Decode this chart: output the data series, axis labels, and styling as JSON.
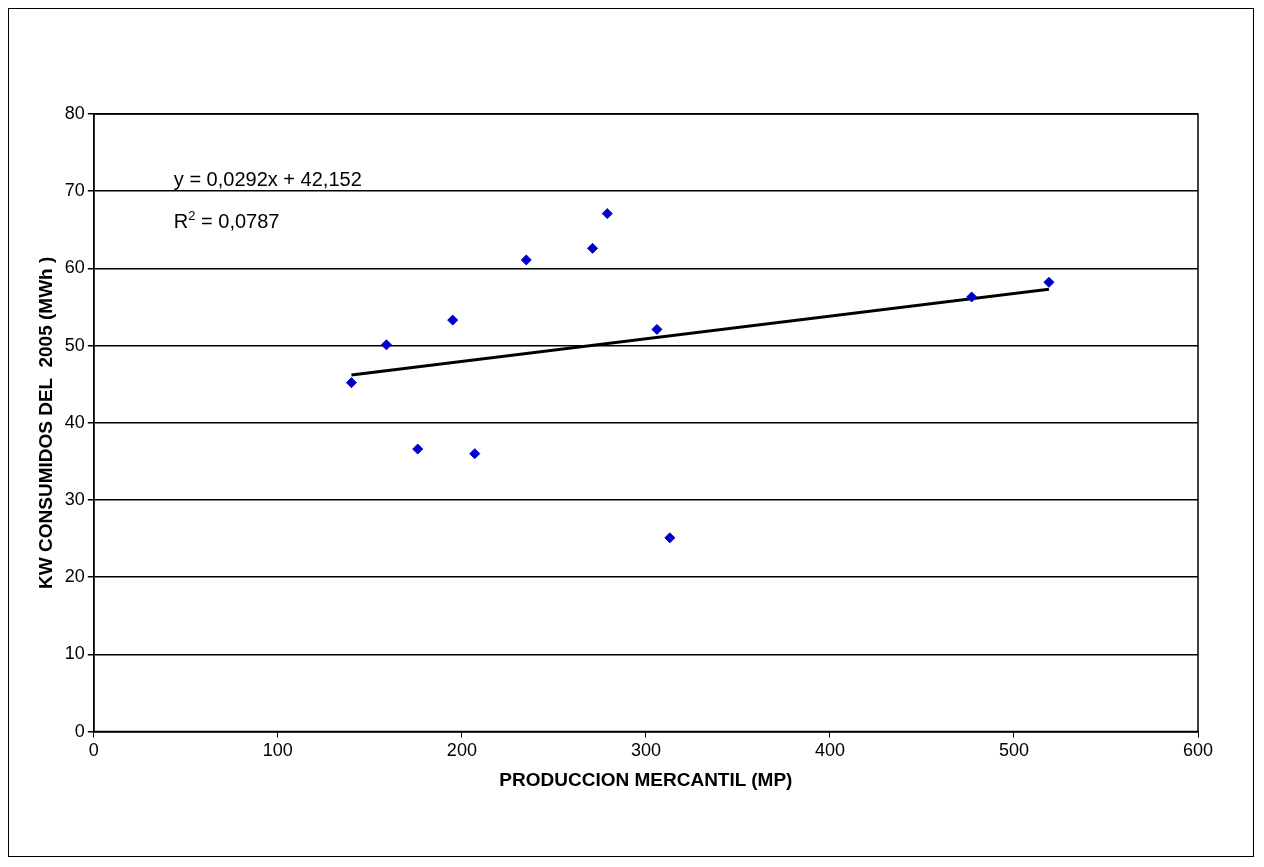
{
  "chart_data": {
    "type": "scatter",
    "xlabel": "PRODUCCION MERCANTIL (MP)",
    "ylabel": "KW CONSUMIDOS DEL  2005 (MWh )",
    "xlim": [
      0,
      600
    ],
    "xticks": [
      0,
      100,
      200,
      300,
      400,
      500,
      600
    ],
    "ylim": [
      0,
      80
    ],
    "yticks": [
      0,
      10,
      20,
      30,
      40,
      50,
      60,
      70,
      80
    ],
    "grid": "y",
    "legend": false,
    "annotations": [
      "y = 0,0292x + 42,152",
      "R$^{2}$ = 0,0787"
    ],
    "series": [
      {
        "type": "scatter",
        "color": "#0000cc",
        "marker": "diamond",
        "x": [
          140,
          159,
          176,
          195,
          207,
          235,
          271,
          279,
          306,
          313,
          477,
          519
        ],
        "values": [
          45.2,
          50.1,
          36.6,
          53.3,
          36.0,
          61.1,
          62.6,
          67.1,
          52.1,
          25.1,
          56.3,
          58.2
        ]
      },
      {
        "type": "line",
        "color": "#000000",
        "marker": "none",
        "x": [
          140,
          519
        ],
        "values": [
          46.2,
          57.3
        ]
      }
    ]
  }
}
